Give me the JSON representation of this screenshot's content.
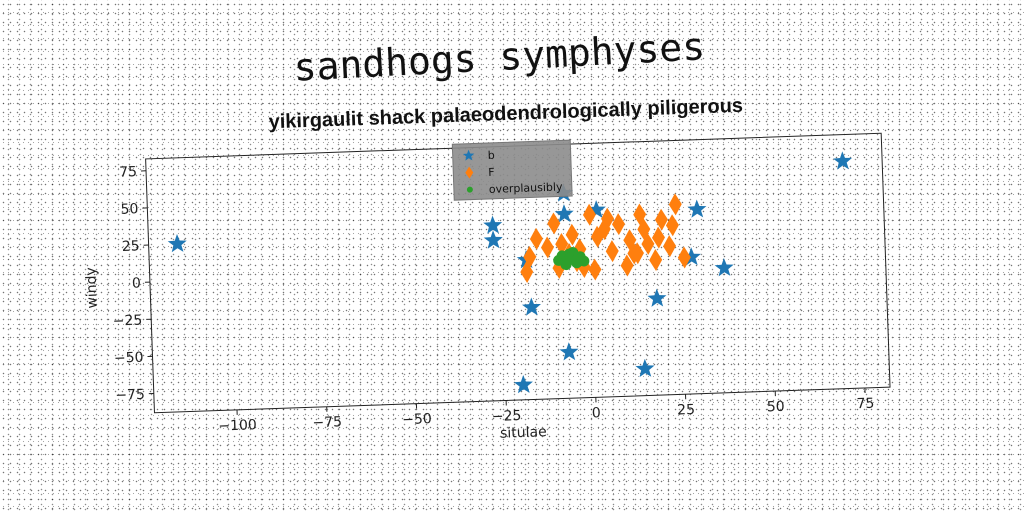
{
  "chart_data": {
    "type": "scatter",
    "title": "sandhogs symphyses",
    "subtitle": "yikirgaulit shack palaeodendrologically piligerous",
    "xlabel": "situlae",
    "ylabel": "windy",
    "xlim": [
      -123,
      82
    ],
    "ylim": [
      -88,
      83
    ],
    "xticks": [
      -100,
      -75,
      -50,
      -25,
      0,
      25,
      50,
      75
    ],
    "yticks": [
      -75,
      -50,
      -25,
      0,
      25,
      50,
      75
    ],
    "xtick_labels": [
      "−100",
      "−75",
      "−50",
      "−25",
      "0",
      "25",
      "50",
      "75"
    ],
    "ytick_labels": [
      "−75",
      "−50",
      "−25",
      "0",
      "25",
      "50",
      "75"
    ],
    "grid": false,
    "legend_position": "top-center",
    "series": [
      {
        "name": "b",
        "marker": "star",
        "color": "#1f77b4",
        "x": [
          -115,
          -27,
          -27,
          -18,
          -17,
          -20,
          -7,
          -7,
          -7,
          2,
          14,
          18,
          28,
          30,
          37,
          71
        ],
        "y": [
          25,
          30,
          20,
          6,
          -26,
          -78,
          -57,
          50,
          36,
          38,
          -70,
          -23,
          4,
          36,
          -4,
          65
        ]
      },
      {
        "name": "F",
        "marker": "diamond",
        "color": "#ff7f0e",
        "x": [
          -18,
          -17,
          -12,
          -10,
          -8,
          -6,
          -5,
          -4,
          -3,
          -2,
          0,
          1,
          2,
          5,
          6,
          8,
          10,
          11,
          12,
          14,
          15,
          16,
          18,
          20,
          22,
          24,
          26,
          -15,
          -9,
          4,
          13,
          19,
          23
        ],
        "y": [
          -2,
          8,
          14,
          30,
          16,
          9,
          22,
          4,
          12,
          0,
          35,
          -2,
          20,
          32,
          10,
          28,
          0,
          17,
          8,
          34,
          24,
          14,
          3,
          30,
          12,
          40,
          4,
          20,
          0,
          25,
          8,
          18,
          26
        ]
      },
      {
        "name": "overplausibly",
        "marker": "circle",
        "color": "#2ca02c",
        "x": [
          -9,
          -8,
          -7,
          -6,
          -5,
          -4,
          -3,
          -7,
          -5,
          -2,
          -6,
          -4
        ],
        "y": [
          5,
          8,
          4,
          9,
          6,
          3,
          7,
          2,
          10,
          4,
          6,
          5
        ]
      }
    ]
  }
}
